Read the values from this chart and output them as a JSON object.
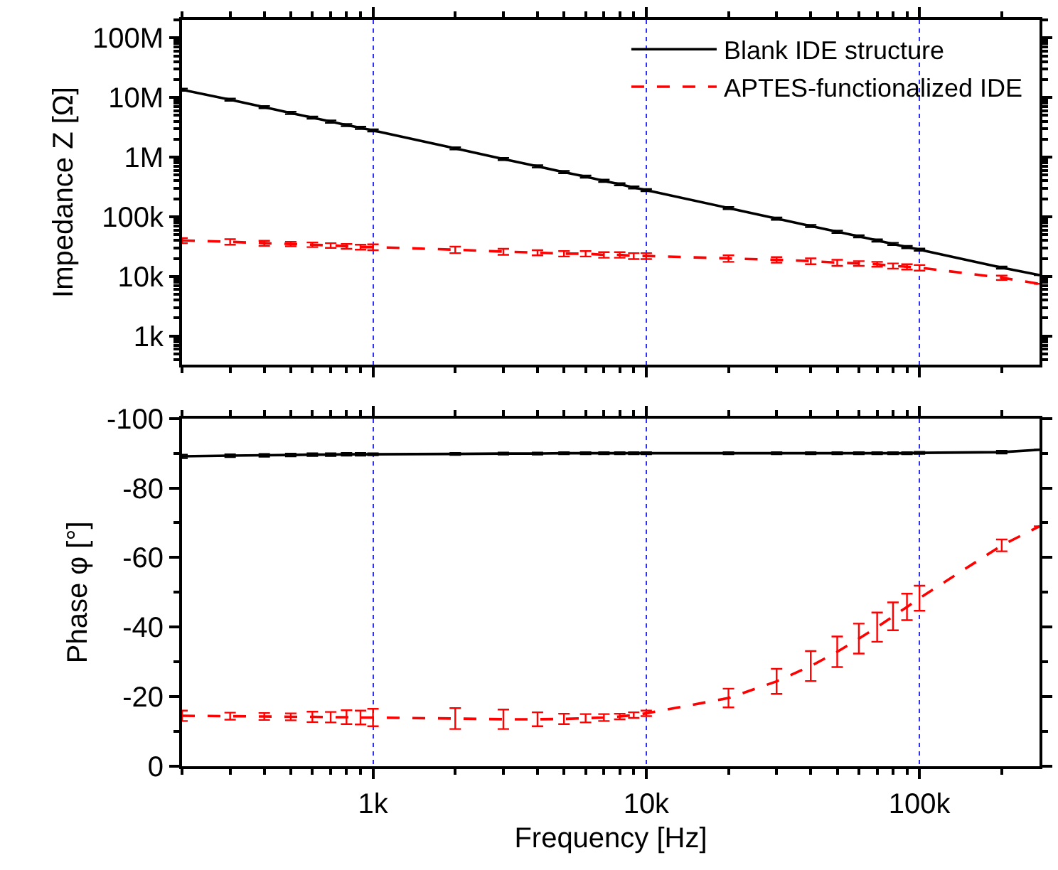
{
  "chart_data": [
    {
      "type": "line",
      "ylabel": "Impedance Z [Ω]",
      "log": "xy",
      "grid": "x",
      "legend": "top right",
      "tick_labels": "y",
      "x": [
        200,
        300,
        400,
        500,
        600,
        700,
        800,
        900,
        1000,
        2000,
        3000,
        4000,
        5000,
        6000,
        7000,
        8000,
        9000,
        10000,
        20000,
        30000,
        40000,
        50000,
        60000,
        70000,
        80000,
        90000,
        100000,
        200000,
        275000
      ],
      "xlim": [
        200,
        275000
      ],
      "xticks": [
        {
          "value": 1000,
          "label": null
        },
        {
          "value": 10000,
          "label": null
        },
        {
          "value": 100000,
          "label": null
        }
      ],
      "ylim": [
        330,
        200000000
      ],
      "yticks": [
        {
          "value": 1000,
          "label": "1k"
        },
        {
          "value": 10000,
          "label": "10k"
        },
        {
          "value": 100000,
          "label": "100k"
        },
        {
          "value": 1000000,
          "label": "1M"
        },
        {
          "value": 10000000,
          "label": "10M"
        },
        {
          "value": 100000000,
          "label": "100M"
        }
      ],
      "series": [
        {
          "name": "Blank IDE structure",
          "color": "#000000",
          "line_style": "solid",
          "values": [
            13500000,
            9200000,
            6900000,
            5500000,
            4600000,
            3950000,
            3450000,
            3100000,
            2800000,
            1400000,
            930000,
            700000,
            560000,
            470000,
            400000,
            350000,
            310000,
            280000,
            140000,
            93000,
            70000,
            56000,
            47000,
            40000,
            35000,
            31000,
            28000,
            14000,
            10500
          ],
          "errors": [
            600000,
            400000,
            300000,
            250000,
            200000,
            180000,
            150000,
            140000,
            120000,
            60000,
            40000,
            30000,
            25000,
            20000,
            18000,
            15000,
            14000,
            12000,
            6000,
            4000,
            3000,
            2500,
            2000,
            1800,
            1500,
            1400,
            1200,
            600,
            null
          ]
        },
        {
          "name": "APTES-functionalized IDE",
          "color": "#ff0000",
          "line_style": "dashed",
          "values": [
            40000,
            38000,
            36000,
            35000,
            34000,
            33000,
            32000,
            31000,
            31000,
            28000,
            26000,
            25000,
            24000,
            24000,
            23000,
            23000,
            22000,
            22000,
            20000,
            19000,
            18000,
            17000,
            16500,
            16000,
            15000,
            14500,
            14000,
            9500,
            7500
          ],
          "errors": [
            4000,
            4000,
            3500,
            3000,
            3000,
            3000,
            3000,
            3000,
            3500,
            3500,
            3000,
            2500,
            2500,
            2500,
            2500,
            2500,
            2500,
            2500,
            2500,
            2000,
            2000,
            2000,
            1500,
            1500,
            1500,
            1500,
            1500,
            800,
            null
          ]
        }
      ]
    },
    {
      "type": "line",
      "xlabel": "Frequency [Hz]",
      "ylabel": "Phase φ [°]",
      "log": "x",
      "grid": "x",
      "x": [
        200,
        300,
        400,
        500,
        600,
        700,
        800,
        900,
        1000,
        2000,
        3000,
        4000,
        5000,
        6000,
        7000,
        8000,
        9000,
        10000,
        20000,
        30000,
        40000,
        50000,
        60000,
        70000,
        80000,
        90000,
        100000,
        200000,
        275000
      ],
      "xlim": [
        200,
        275000
      ],
      "xticks": [
        {
          "value": 1000,
          "label": "1k"
        },
        {
          "value": 10000,
          "label": "10k"
        },
        {
          "value": 100000,
          "label": "100k"
        }
      ],
      "ylim": [
        0,
        -100
      ],
      "yticks": [
        0,
        -20,
        -40,
        -60,
        -80,
        -100
      ],
      "series": [
        {
          "color": "#000000",
          "line_style": "solid",
          "values": [
            -89.1,
            -89.3,
            -89.4,
            -89.5,
            -89.6,
            -89.6,
            -89.7,
            -89.7,
            -89.7,
            -89.8,
            -89.9,
            -89.9,
            -90,
            -90,
            -90,
            -90,
            -90,
            -90,
            -90,
            -90,
            -90,
            -90,
            -90,
            -90,
            -90,
            -90,
            -90.1,
            -90.3,
            -91
          ],
          "errors": [
            0.5,
            0.4,
            0.4,
            0.4,
            0.4,
            0.4,
            0.4,
            0.4,
            0.3,
            0.3,
            0.3,
            0.3,
            0.3,
            0.3,
            0.3,
            0.3,
            0.3,
            0.3,
            0.3,
            0.3,
            0.3,
            0.3,
            0.3,
            0.3,
            0.3,
            0.3,
            0.3,
            0.4,
            null
          ]
        },
        {
          "color": "#ff0000",
          "line_style": "dashed",
          "values": [
            -14.5,
            -14.4,
            -14.3,
            -14.2,
            -14.2,
            -14.1,
            -14.1,
            -14,
            -14,
            -13.7,
            -13.5,
            -13.5,
            -13.6,
            -13.8,
            -14,
            -14.3,
            -14.7,
            -15.2,
            -19.6,
            -24.4,
            -28.8,
            -32.9,
            -36.7,
            -40,
            -43.1,
            -45.8,
            -48.3,
            -63.5,
            -69
          ],
          "errors": [
            1.5,
            1,
            1,
            1,
            1.5,
            1.5,
            2,
            2,
            2.5,
            3,
            2.8,
            2,
            1.5,
            1.2,
            1,
            0.8,
            0.8,
            0.8,
            2.7,
            3.6,
            4.3,
            4.4,
            4.3,
            4.2,
            4,
            3.8,
            3.6,
            1.7,
            null
          ]
        }
      ]
    }
  ]
}
